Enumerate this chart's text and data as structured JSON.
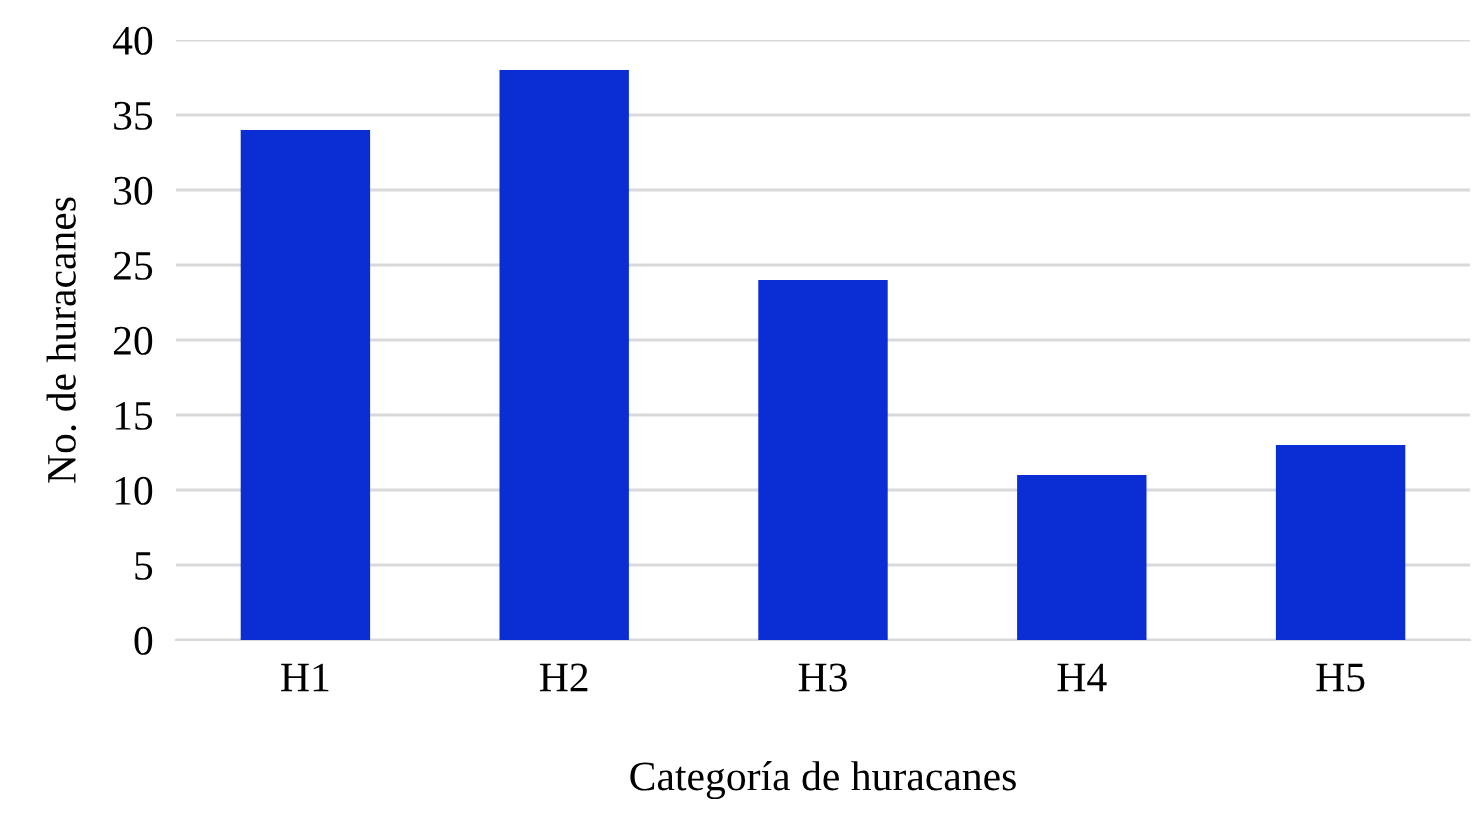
{
  "chart_data": {
    "type": "bar",
    "xlabel": "Categoría de huracanes",
    "ylabel": "No. de huracanes",
    "categories": [
      "H1",
      "H2",
      "H3",
      "H4",
      "H5"
    ],
    "values": [
      34,
      38,
      24,
      11,
      13
    ],
    "color": "#0a2ed4",
    "ylim": [
      0,
      40
    ],
    "yticks": [
      0,
      5,
      10,
      15,
      20,
      25,
      30,
      35,
      40
    ],
    "grid": "y"
  }
}
